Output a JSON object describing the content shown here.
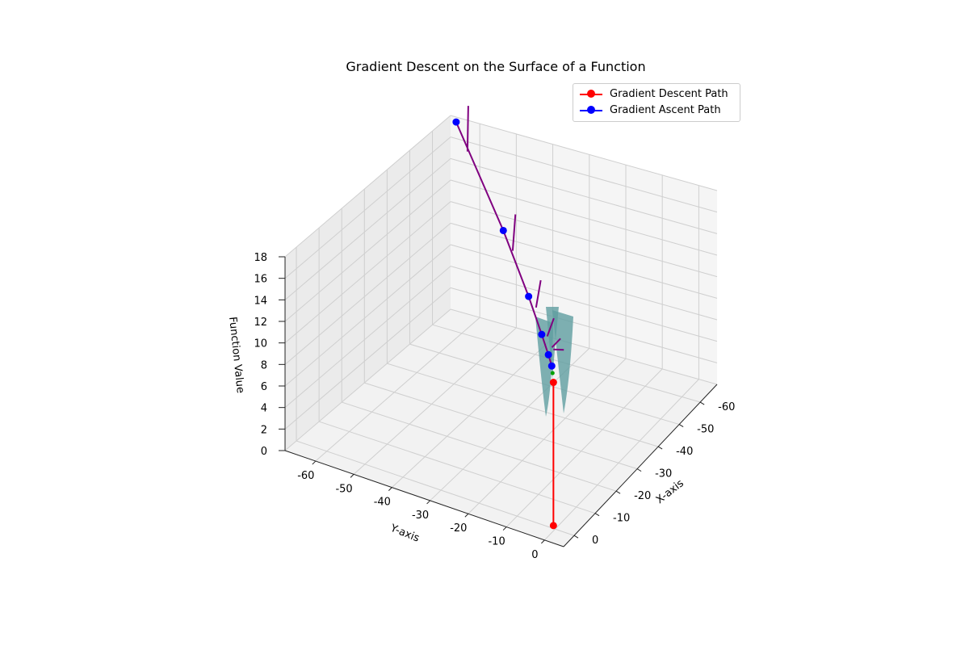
{
  "chart_data": {
    "type": "line3d",
    "title": "Gradient Descent on the Surface of a Function",
    "xlabel": "X-axis",
    "ylabel": "Y-axis",
    "zlabel": "Function Value",
    "x_ticks": [
      "-60",
      "-50",
      "-40",
      "-30",
      "-20",
      "-10",
      "0"
    ],
    "y_ticks": [
      "-60",
      "-50",
      "-40",
      "-30",
      "-20",
      "-10",
      "0"
    ],
    "z_ticks": [
      "0",
      "2",
      "4",
      "6",
      "8",
      "10",
      "12",
      "14",
      "16",
      "18"
    ],
    "xlim": [
      -68,
      5
    ],
    "ylim": [
      -68,
      5
    ],
    "zlim": [
      0,
      18
    ],
    "grid": true,
    "legend_position": "top-right",
    "legend": [
      {
        "label": "Gradient Descent Path",
        "color": "#ff0000",
        "marker": "circle"
      },
      {
        "label": "Gradient Ascent Path",
        "color": "#0000ff",
        "marker": "circle"
      }
    ],
    "series": [
      {
        "name": "Gradient Descent Path",
        "color": "#ff0000",
        "points": [
          [
            -1,
            -1,
            13.3
          ],
          [
            -1,
            -1,
            0
          ]
        ]
      },
      {
        "name": "Gradient Ascent Path",
        "color": "#0000ff",
        "points": [
          [
            -2,
            -2,
            14.5
          ],
          [
            -4,
            -4,
            14.9
          ],
          [
            -8,
            -8,
            15.5
          ],
          [
            -16,
            -16,
            16.5
          ],
          [
            -32,
            -32,
            17.7
          ],
          [
            -64,
            -64,
            18.5
          ]
        ]
      }
    ],
    "gradient_segments": {
      "color": "#800080",
      "points": [
        [
          -64,
          -64,
          18.5
        ],
        [
          -32,
          -32,
          17.7
        ],
        [
          -16,
          -16,
          16.5
        ],
        [
          -8,
          -8,
          15.5
        ],
        [
          -4,
          -4,
          14.9
        ],
        [
          -2,
          -2,
          14.5
        ]
      ]
    },
    "surface": {
      "color": "#5f9ea0",
      "description_range_x": [
        -2,
        2
      ],
      "description_range_y": [
        -2,
        2
      ]
    }
  }
}
